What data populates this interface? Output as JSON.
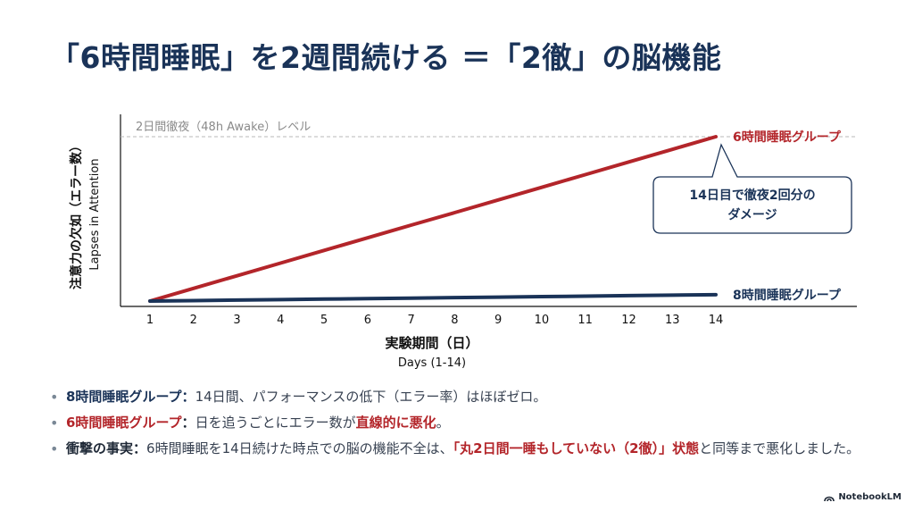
{
  "title": "「6時間睡眠」を2週間続ける ＝「2徹」の脳機能",
  "chart_data": {
    "type": "line",
    "x": [
      1,
      2,
      3,
      4,
      5,
      6,
      7,
      8,
      9,
      10,
      11,
      12,
      13,
      14
    ],
    "series": [
      {
        "name": "6時間睡眠グループ",
        "color": "#b3252a",
        "values": [
          0.0,
          0.077,
          0.154,
          0.231,
          0.308,
          0.385,
          0.462,
          0.538,
          0.615,
          0.692,
          0.769,
          0.846,
          0.923,
          1.0
        ]
      },
      {
        "name": "8時間睡眠グループ",
        "color": "#1a3358",
        "values": [
          0.0,
          0.003,
          0.006,
          0.009,
          0.012,
          0.015,
          0.018,
          0.021,
          0.024,
          0.027,
          0.03,
          0.033,
          0.036,
          0.039
        ]
      }
    ],
    "reference_line": {
      "label": "2日間徹夜（48h Awake）レベル",
      "value": 1.0
    },
    "ylim": [
      0,
      1.12
    ],
    "xlabel": "実験期間（日）",
    "xlabel_en": "Days (1-14)",
    "ylabel": "注意力の欠如（エラー数）",
    "ylabel_en": "Lapses in Attention",
    "callout": [
      "14日目で徹夜2回分の",
      "ダメージ"
    ],
    "grid": false
  },
  "bullets": [
    {
      "label": "8時間睡眠グループ",
      "sep": "：",
      "text": "14日間、パフォーマンスの低下（エラー率）はほぼゼロ。"
    },
    {
      "label": "6時間睡眠グループ",
      "sep": "：",
      "text_before": "日を追うごとにエラー数が",
      "emph": "直線的に悪化",
      "text_after": "。"
    },
    {
      "label": "衝撃の事実",
      "sep": "：",
      "text_before": "6時間睡眠を14日続けた時点での脳の機能不全は、",
      "emph": "「丸2日間一睡もしていない（2徹）」状態",
      "text_after": "と同等まで悪化しました。"
    }
  ],
  "logo": "NotebookLM"
}
